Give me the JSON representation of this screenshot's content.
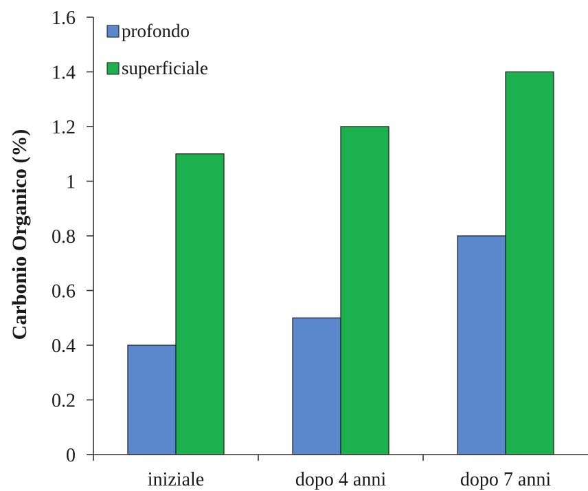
{
  "chart_data": {
    "type": "bar",
    "categories": [
      "iniziale",
      "dopo 4 anni",
      "dopo 7 anni"
    ],
    "series": [
      {
        "name": "profondo",
        "values": [
          0.4,
          0.5,
          0.8
        ],
        "color": "#5b87cc"
      },
      {
        "name": "superficiale",
        "values": [
          1.1,
          1.2,
          1.4
        ],
        "color": "#1db04e"
      }
    ],
    "title": "",
    "xlabel": "",
    "ylabel": "Carbonio Organico (%)",
    "ylim": [
      0,
      1.6
    ],
    "yticks": [
      "0",
      "0.2",
      "0.4",
      "0.6",
      "0.8",
      "1",
      "1.2",
      "1.4",
      "1.6"
    ],
    "grid": false,
    "legend_position": "top-left"
  }
}
